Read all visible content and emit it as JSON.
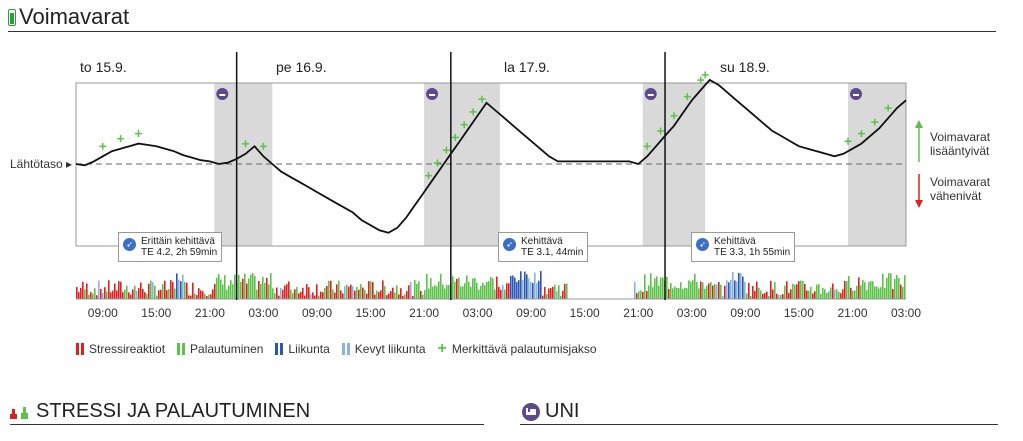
{
  "header": {
    "title": "Voimavarat",
    "battery_color": "#2e9e3a"
  },
  "days": [
    "to 15.9.",
    "pe 16.9.",
    "la 17.9.",
    "su 18.9."
  ],
  "side_labels": {
    "baseline": "Lähtötaso",
    "increased": [
      "Voimavarat",
      "lisääntyivät"
    ],
    "decreased": [
      "Voimavarat",
      "vähenivät"
    ]
  },
  "callouts": [
    {
      "line1": "Erittäin kehittävä",
      "line2": "TE 4.2, 2h 59min"
    },
    {
      "line1": "Kehittävä",
      "line2": "TE 3.1, 44min"
    },
    {
      "line1": "Kehittävä",
      "line2": "TE 3.3, 1h 55min"
    }
  ],
  "ticks": [
    "09:00",
    "15:00",
    "21:00",
    "03:00",
    "09:00",
    "15:00",
    "21:00",
    "03:00",
    "09:00",
    "15:00",
    "21:00",
    "03:00",
    "09:00",
    "15:00",
    "21:00",
    "03:00"
  ],
  "legend": [
    {
      "label": "Stressireaktiot",
      "color": "#e02020",
      "icon": "stress-bar-icon"
    },
    {
      "label": "Palautuminen",
      "color": "#5cc24a",
      "icon": "recovery-bar-icon"
    },
    {
      "label": "Liikunta",
      "color": "#2a56b5",
      "icon": "exercise-bar-icon"
    },
    {
      "label": "Kevyt liikunta",
      "color": "#8ab4e0",
      "icon": "light-exercise-bar-icon"
    },
    {
      "label": "Merkittävä palautumisjakso",
      "color": "#5cc24a",
      "icon": "plus-icon"
    }
  ],
  "sections": [
    {
      "title": "STRESSI JA PALAUTUMINEN",
      "icon": "stress-recovery-icon"
    },
    {
      "title": "UNI",
      "icon": "sleep-icon"
    }
  ],
  "colors": {
    "stress": "#e02020",
    "recovery": "#5cc24a",
    "exercise": "#2a56b5",
    "light": "#8ab4e0",
    "sleep_shade": "#d9d9d9",
    "line": "#111111",
    "sleep_icon": "#5a4a8c"
  },
  "chart_data": {
    "type": "line",
    "x_unit": "hours since to 15.9. 06:00",
    "x_range": [
      0,
      93
    ],
    "resource_level_relative_to_baseline": {
      "x": [
        0,
        1,
        2,
        3,
        4,
        5,
        6,
        7,
        8,
        9,
        10,
        11,
        12,
        13,
        14,
        15,
        16,
        17,
        18,
        19,
        20,
        21,
        22,
        23,
        24,
        25,
        26,
        27,
        28,
        29,
        30,
        31,
        32,
        33,
        34,
        35,
        36,
        37,
        38,
        39,
        40,
        41,
        42,
        43,
        44,
        45,
        46,
        47,
        48,
        49,
        50,
        51,
        52,
        53,
        54,
        55,
        56,
        57,
        58,
        59,
        60,
        61,
        62,
        63,
        64,
        65,
        66,
        67,
        68,
        69,
        70,
        71,
        72,
        73,
        74,
        75,
        76,
        77,
        78,
        79,
        80,
        81,
        82,
        83,
        84,
        85,
        86,
        87,
        88,
        89,
        90,
        91,
        92,
        93
      ],
      "y": [
        0,
        -0.5,
        1,
        3,
        5,
        6,
        7,
        8,
        7.5,
        7,
        6,
        5,
        3.5,
        2.5,
        1.5,
        1,
        0,
        0.5,
        2,
        4,
        7,
        3,
        0,
        -3,
        -5,
        -7,
        -9,
        -11,
        -13,
        -15,
        -17,
        -19,
        -22,
        -24,
        -26,
        -27,
        -25,
        -21,
        -16,
        -11,
        -6,
        -1,
        4,
        9,
        14,
        19,
        24,
        21,
        18,
        15,
        12,
        9,
        6,
        3,
        1,
        1,
        1,
        1,
        1,
        1,
        1,
        1,
        1,
        0,
        3,
        7,
        11,
        15,
        20,
        25,
        29,
        33,
        31,
        28,
        25,
        22,
        19,
        16,
        13,
        11,
        9,
        7,
        6,
        5,
        4,
        3,
        4,
        6,
        8,
        11,
        14,
        18,
        22,
        25
      ]
    },
    "sleep_periods": [
      [
        15.5,
        22
      ],
      [
        39,
        47.5
      ],
      [
        63.5,
        70.5
      ],
      [
        86.5,
        93
      ]
    ],
    "significant_recovery_x": [
      3,
      5,
      7,
      19,
      21,
      39.5,
      40.5,
      41.5,
      42.5,
      43.5,
      44.5,
      45.5,
      64,
      65.5,
      67,
      68.5,
      70,
      70.5,
      86.5,
      88,
      89.5,
      91
    ],
    "activity_markers_x": [
      15.5,
      39,
      63.5,
      86.5
    ],
    "exercise_periods": [
      {
        "x": [
          11,
          12
        ],
        "label_index": 0
      },
      {
        "x": [
          48.5,
          52
        ],
        "label_index": 1
      },
      {
        "x": [
          73,
          75
        ],
        "label_index": 2
      }
    ],
    "annotations": [
      "Erittäin kehittävä TE 4.2, 2h 59min",
      "Kehittävä TE 3.1, 44min",
      "Kehittävä TE 3.3, 1h 55min"
    ]
  }
}
